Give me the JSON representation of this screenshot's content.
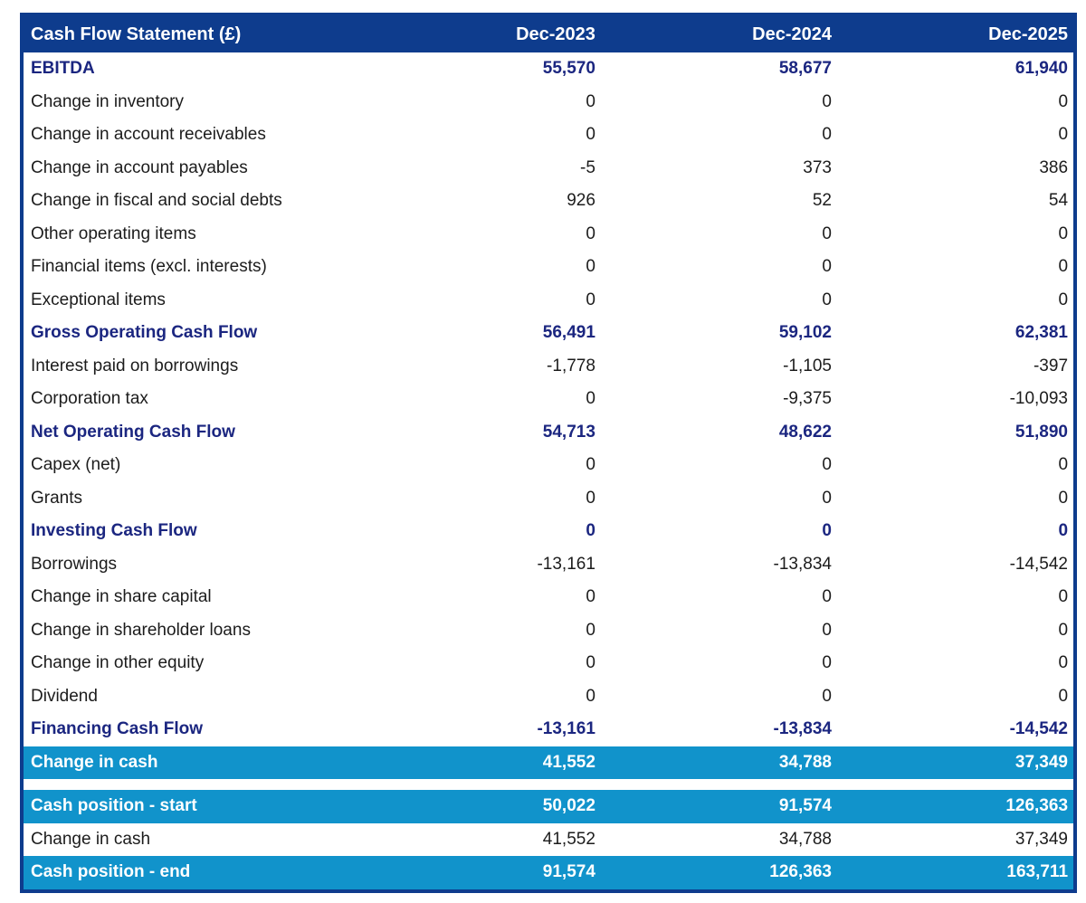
{
  "table": {
    "header": {
      "title": "Cash Flow Statement (£)",
      "columns": [
        "Dec-2023",
        "Dec-2024",
        "Dec-2025"
      ]
    },
    "rows": [
      {
        "label": "EBITDA",
        "values": [
          "55,570",
          "58,677",
          "61,940"
        ],
        "kind": "total"
      },
      {
        "label": "Change in inventory",
        "values": [
          "0",
          "0",
          "0"
        ],
        "kind": "normal"
      },
      {
        "label": "Change in account receivables",
        "values": [
          "0",
          "0",
          "0"
        ],
        "kind": "normal"
      },
      {
        "label": "Change in account payables",
        "values": [
          "-5",
          "373",
          "386"
        ],
        "kind": "normal"
      },
      {
        "label": "Change in fiscal and social debts",
        "values": [
          "926",
          "52",
          "54"
        ],
        "kind": "normal"
      },
      {
        "label": "Other operating items",
        "values": [
          "0",
          "0",
          "0"
        ],
        "kind": "normal"
      },
      {
        "label": "Financial items (excl. interests)",
        "values": [
          "0",
          "0",
          "0"
        ],
        "kind": "normal"
      },
      {
        "label": "Exceptional items",
        "values": [
          "0",
          "0",
          "0"
        ],
        "kind": "normal"
      },
      {
        "label": "Gross Operating Cash Flow",
        "values": [
          "56,491",
          "59,102",
          "62,381"
        ],
        "kind": "total"
      },
      {
        "label": "Interest paid on borrowings",
        "values": [
          "-1,778",
          "-1,105",
          "-397"
        ],
        "kind": "normal"
      },
      {
        "label": "Corporation tax",
        "values": [
          "0",
          "-9,375",
          "-10,093"
        ],
        "kind": "normal"
      },
      {
        "label": "Net Operating Cash Flow",
        "values": [
          "54,713",
          "48,622",
          "51,890"
        ],
        "kind": "total"
      },
      {
        "label": "Capex (net)",
        "values": [
          "0",
          "0",
          "0"
        ],
        "kind": "normal"
      },
      {
        "label": "Grants",
        "values": [
          "0",
          "0",
          "0"
        ],
        "kind": "normal"
      },
      {
        "label": "Investing Cash Flow",
        "values": [
          "0",
          "0",
          "0"
        ],
        "kind": "total"
      },
      {
        "label": "Borrowings",
        "values": [
          "-13,161",
          "-13,834",
          "-14,542"
        ],
        "kind": "normal"
      },
      {
        "label": "Change in share capital",
        "values": [
          "0",
          "0",
          "0"
        ],
        "kind": "normal"
      },
      {
        "label": "Change in shareholder loans",
        "values": [
          "0",
          "0",
          "0"
        ],
        "kind": "normal"
      },
      {
        "label": "Change in other equity",
        "values": [
          "0",
          "0",
          "0"
        ],
        "kind": "normal"
      },
      {
        "label": "Dividend",
        "values": [
          "0",
          "0",
          "0"
        ],
        "kind": "normal"
      },
      {
        "label": "Financing Cash Flow",
        "values": [
          "-13,161",
          "-13,834",
          "-14,542"
        ],
        "kind": "total"
      },
      {
        "label": "Change in cash",
        "values": [
          "41,552",
          "34,788",
          "37,349"
        ],
        "kind": "band"
      },
      {
        "kind": "spacer"
      },
      {
        "label": "Cash position - start",
        "values": [
          "50,022",
          "91,574",
          "126,363"
        ],
        "kind": "band"
      },
      {
        "label": "Change in cash",
        "values": [
          "41,552",
          "34,788",
          "37,349"
        ],
        "kind": "normal"
      },
      {
        "label": "Cash position - end",
        "values": [
          "91,574",
          "126,363",
          "163,711"
        ],
        "kind": "band"
      }
    ]
  },
  "colors": {
    "header_background": "#0e3c8d",
    "table_border": "#0e3c8d",
    "subtotal_text": "#1b2680",
    "highlight_band": "#1193cb",
    "body_text": "#1c1c1c",
    "header_text": "#ffffff"
  },
  "chart_data": {
    "type": "table",
    "title": "Cash Flow Statement (£)",
    "columns": [
      "Dec-2023",
      "Dec-2024",
      "Dec-2025"
    ],
    "rows": [
      {
        "label": "EBITDA",
        "values": [
          55570,
          58677,
          61940
        ]
      },
      {
        "label": "Change in inventory",
        "values": [
          0,
          0,
          0
        ]
      },
      {
        "label": "Change in account receivables",
        "values": [
          0,
          0,
          0
        ]
      },
      {
        "label": "Change in account payables",
        "values": [
          -5,
          373,
          386
        ]
      },
      {
        "label": "Change in fiscal and social debts",
        "values": [
          926,
          52,
          54
        ]
      },
      {
        "label": "Other operating items",
        "values": [
          0,
          0,
          0
        ]
      },
      {
        "label": "Financial items (excl. interests)",
        "values": [
          0,
          0,
          0
        ]
      },
      {
        "label": "Exceptional items",
        "values": [
          0,
          0,
          0
        ]
      },
      {
        "label": "Gross Operating Cash Flow",
        "values": [
          56491,
          59102,
          62381
        ]
      },
      {
        "label": "Interest paid on borrowings",
        "values": [
          -1778,
          -1105,
          -397
        ]
      },
      {
        "label": "Corporation tax",
        "values": [
          0,
          -9375,
          -10093
        ]
      },
      {
        "label": "Net Operating Cash Flow",
        "values": [
          54713,
          48622,
          51890
        ]
      },
      {
        "label": "Capex (net)",
        "values": [
          0,
          0,
          0
        ]
      },
      {
        "label": "Grants",
        "values": [
          0,
          0,
          0
        ]
      },
      {
        "label": "Investing Cash Flow",
        "values": [
          0,
          0,
          0
        ]
      },
      {
        "label": "Borrowings",
        "values": [
          -13161,
          -13834,
          -14542
        ]
      },
      {
        "label": "Change in share capital",
        "values": [
          0,
          0,
          0
        ]
      },
      {
        "label": "Change in shareholder loans",
        "values": [
          0,
          0,
          0
        ]
      },
      {
        "label": "Change in other equity",
        "values": [
          0,
          0,
          0
        ]
      },
      {
        "label": "Dividend",
        "values": [
          0,
          0,
          0
        ]
      },
      {
        "label": "Financing Cash Flow",
        "values": [
          -13161,
          -13834,
          -14542
        ]
      },
      {
        "label": "Change in cash",
        "values": [
          41552,
          34788,
          37349
        ]
      },
      {
        "label": "Cash position - start",
        "values": [
          50022,
          91574,
          126363
        ]
      },
      {
        "label": "Change in cash",
        "values": [
          41552,
          34788,
          37349
        ]
      },
      {
        "label": "Cash position - end",
        "values": [
          91574,
          126363,
          163711
        ]
      }
    ]
  }
}
